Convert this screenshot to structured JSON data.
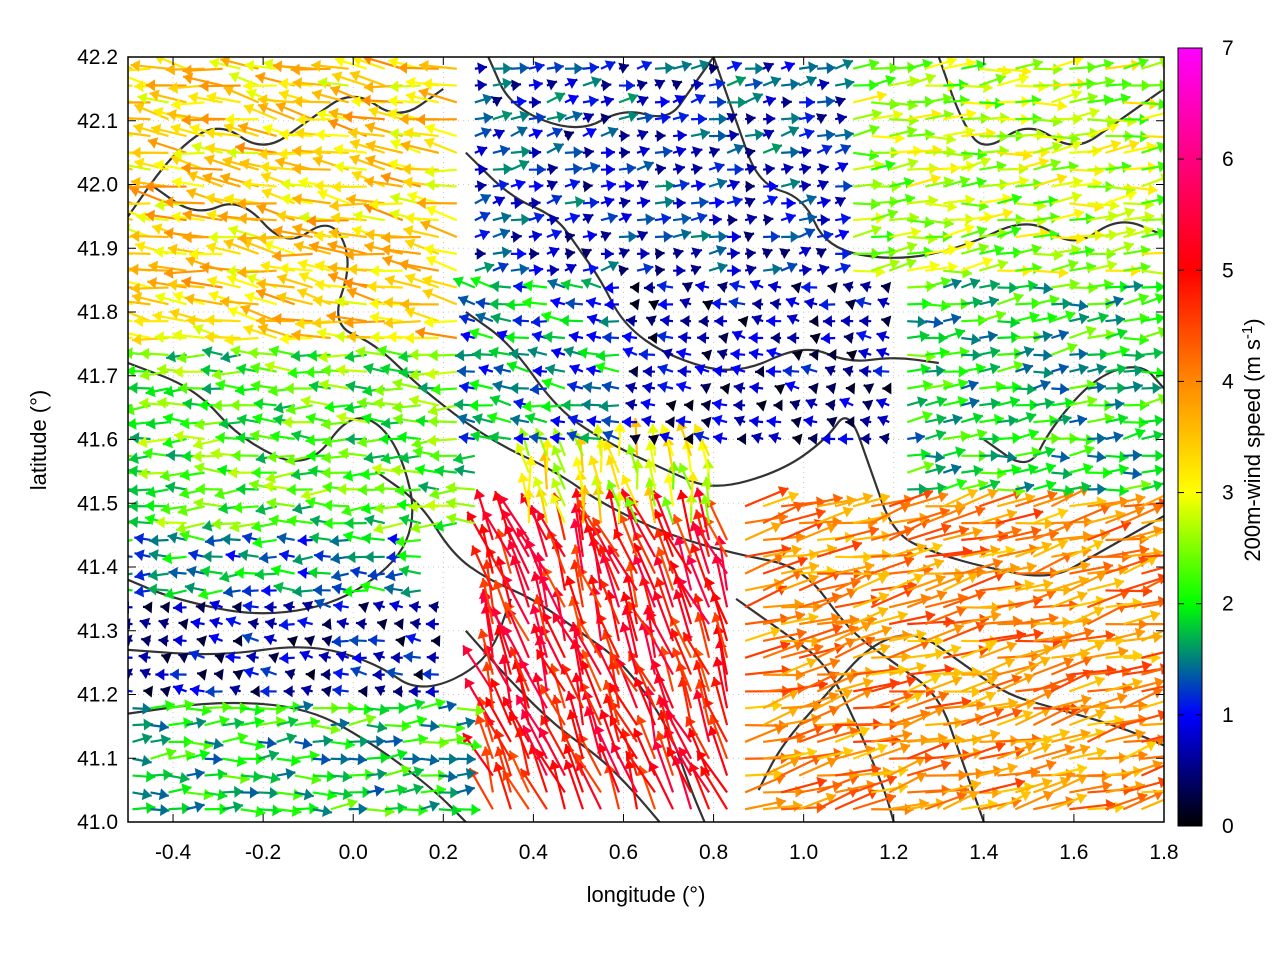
{
  "chart_data": {
    "type": "vector-field",
    "xlabel": "longitude (°)",
    "ylabel": "latitude (°)",
    "colorbar_label": "200m-wind speed (m s",
    "colorbar_label_sup": "-1",
    "colorbar_label_close": ")",
    "xlim": [
      -0.5,
      1.8
    ],
    "ylim": [
      41.0,
      42.2
    ],
    "xticks": [
      -0.4,
      -0.2,
      0.0,
      0.2,
      0.4,
      0.6,
      0.8,
      1.0,
      1.2,
      1.4,
      1.6,
      1.8
    ],
    "xtick_labels": [
      "-0.4",
      "-0.2",
      "0.0",
      "0.2",
      "0.4",
      "0.6",
      "0.8",
      "1.0",
      "1.2",
      "1.4",
      "1.6",
      "1.8"
    ],
    "yticks": [
      41.0,
      41.1,
      41.2,
      41.3,
      41.4,
      41.5,
      41.6,
      41.7,
      41.8,
      41.9,
      42.0,
      42.1,
      42.2
    ],
    "ytick_labels": [
      "41.0",
      "41.1",
      "41.2",
      "41.3",
      "41.4",
      "41.5",
      "41.6",
      "41.7",
      "41.8",
      "41.9",
      "42.0",
      "42.1",
      "42.2"
    ],
    "colorbar": {
      "range": [
        0,
        7
      ],
      "ticks": [
        0,
        1,
        2,
        3,
        4,
        5,
        6,
        7
      ],
      "tick_labels": [
        "0",
        "1",
        "2",
        "3",
        "4",
        "5",
        "6",
        "7"
      ],
      "colors": [
        "#000000",
        "#0000ff",
        "#00ff00",
        "#ffff00",
        "#ff8800",
        "#ff0000",
        "#ff00ff"
      ]
    },
    "grid": true,
    "vector_regions": [
      {
        "lon": [
          -0.5,
          0.3
        ],
        "lat": [
          41.75,
          42.2
        ],
        "u": -3.0,
        "v": 0.5,
        "speed": 3.4
      },
      {
        "lon": [
          -0.5,
          0.3
        ],
        "lat": [
          41.45,
          41.75
        ],
        "u": -2.2,
        "v": 0.0,
        "speed": 2.2
      },
      {
        "lon": [
          -0.5,
          0.15
        ],
        "lat": [
          41.35,
          41.45
        ],
        "u": -1.6,
        "v": 0.0,
        "speed": 1.6
      },
      {
        "lon": [
          -0.5,
          0.2
        ],
        "lat": [
          41.2,
          41.35
        ],
        "u": -0.6,
        "v": 0.1,
        "speed": 0.7
      },
      {
        "lon": [
          -0.5,
          0.25
        ],
        "lat": [
          41.0,
          41.2
        ],
        "u": 1.8,
        "v": 0.1,
        "speed": 1.9
      },
      {
        "lon": [
          0.3,
          0.85
        ],
        "lat": [
          41.0,
          41.45
        ],
        "u": -1.8,
        "v": 4.5,
        "speed": 5.0
      },
      {
        "lon": [
          0.35,
          0.8
        ],
        "lat": [
          41.45,
          41.6
        ],
        "u": -0.5,
        "v": 2.8,
        "speed": 3.0
      },
      {
        "lon": [
          0.6,
          1.2
        ],
        "lat": [
          41.6,
          41.85
        ],
        "u": -0.5,
        "v": 0.1,
        "speed": 0.6
      },
      {
        "lon": [
          0.25,
          0.6
        ],
        "lat": [
          41.6,
          41.85
        ],
        "u": -1.2,
        "v": 0.2,
        "speed": 1.5
      },
      {
        "lon": [
          0.25,
          1.1
        ],
        "lat": [
          41.85,
          42.2
        ],
        "u": 0.4,
        "v": 0.1,
        "speed": 1.0
      },
      {
        "lon": [
          1.1,
          1.8
        ],
        "lat": [
          41.85,
          42.2
        ],
        "u": 2.6,
        "v": 0.3,
        "speed": 2.7
      },
      {
        "lon": [
          1.2,
          1.8
        ],
        "lat": [
          41.5,
          41.85
        ],
        "u": 1.6,
        "v": 0.2,
        "speed": 1.9
      },
      {
        "lon": [
          0.85,
          1.8
        ],
        "lat": [
          41.0,
          41.5
        ],
        "u": 3.8,
        "v": 0.9,
        "speed": 4.0
      }
    ],
    "contour_lines": [
      {
        "points": [
          [
            -0.5,
            41.72
          ],
          [
            -0.35,
            41.68
          ],
          [
            -0.25,
            41.6
          ],
          [
            -0.1,
            41.55
          ],
          [
            0.0,
            41.65
          ],
          [
            0.1,
            41.6
          ],
          [
            0.15,
            41.45
          ],
          [
            0.0,
            41.35
          ],
          [
            -0.2,
            41.32
          ],
          [
            -0.4,
            41.35
          ],
          [
            -0.5,
            41.38
          ]
        ]
      },
      {
        "points": [
          [
            -0.5,
            41.27
          ],
          [
            -0.3,
            41.26
          ],
          [
            -0.1,
            41.28
          ],
          [
            0.05,
            41.25
          ],
          [
            0.15,
            41.2
          ],
          [
            0.3,
            41.25
          ],
          [
            0.35,
            41.35
          ]
        ]
      },
      {
        "points": [
          [
            -0.5,
            41.17
          ],
          [
            -0.3,
            41.19
          ],
          [
            -0.1,
            41.18
          ],
          [
            0.05,
            41.12
          ],
          [
            0.18,
            41.05
          ],
          [
            0.25,
            41.0
          ]
        ]
      },
      {
        "points": [
          [
            -0.45,
            42.0
          ],
          [
            -0.35,
            41.95
          ],
          [
            -0.25,
            41.98
          ],
          [
            -0.15,
            41.9
          ],
          [
            -0.05,
            41.95
          ],
          [
            0.0,
            41.88
          ],
          [
            -0.05,
            41.78
          ],
          [
            0.05,
            41.75
          ],
          [
            0.15,
            41.68
          ],
          [
            0.3,
            41.6
          ],
          [
            0.45,
            41.55
          ],
          [
            0.55,
            41.5
          ],
          [
            0.7,
            41.45
          ],
          [
            0.85,
            41.42
          ],
          [
            1.0,
            41.4
          ],
          [
            1.1,
            41.3
          ],
          [
            1.2,
            41.25
          ],
          [
            1.3,
            41.2
          ],
          [
            1.35,
            41.1
          ],
          [
            1.4,
            41.0
          ]
        ]
      },
      {
        "points": [
          [
            0.25,
            42.05
          ],
          [
            0.35,
            41.98
          ],
          [
            0.45,
            41.95
          ],
          [
            0.5,
            41.9
          ],
          [
            0.55,
            41.85
          ],
          [
            0.6,
            41.78
          ],
          [
            0.7,
            41.73
          ],
          [
            0.85,
            41.7
          ],
          [
            1.0,
            41.75
          ],
          [
            1.1,
            41.72
          ],
          [
            1.2,
            41.73
          ],
          [
            1.3,
            41.72
          ]
        ]
      },
      {
        "points": [
          [
            0.25,
            41.8
          ],
          [
            0.35,
            41.75
          ],
          [
            0.45,
            41.65
          ],
          [
            0.55,
            41.6
          ],
          [
            0.7,
            41.55
          ],
          [
            0.8,
            41.52
          ],
          [
            0.95,
            41.55
          ],
          [
            1.05,
            41.6
          ],
          [
            1.1,
            41.65
          ],
          [
            1.15,
            41.55
          ],
          [
            1.2,
            41.45
          ],
          [
            1.3,
            41.42
          ],
          [
            1.4,
            41.4
          ],
          [
            1.55,
            41.38
          ],
          [
            1.65,
            41.42
          ],
          [
            1.8,
            41.48
          ]
        ]
      },
      {
        "points": [
          [
            0.05,
            41.55
          ],
          [
            0.15,
            41.5
          ],
          [
            0.22,
            41.42
          ],
          [
            0.3,
            41.38
          ],
          [
            0.4,
            41.35
          ],
          [
            0.5,
            41.3
          ],
          [
            0.6,
            41.25
          ],
          [
            0.7,
            41.15
          ],
          [
            0.75,
            41.05
          ],
          [
            0.78,
            41.0
          ]
        ]
      },
      {
        "points": [
          [
            0.25,
            41.3
          ],
          [
            0.35,
            41.22
          ],
          [
            0.45,
            41.15
          ],
          [
            0.55,
            41.1
          ],
          [
            0.62,
            41.05
          ],
          [
            0.68,
            41.0
          ]
        ]
      },
      {
        "points": [
          [
            0.85,
            41.35
          ],
          [
            0.95,
            41.3
          ],
          [
            1.05,
            41.25
          ],
          [
            1.12,
            41.15
          ],
          [
            1.18,
            41.05
          ],
          [
            1.2,
            41.0
          ]
        ]
      },
      {
        "points": [
          [
            0.9,
            41.05
          ],
          [
            0.95,
            41.12
          ],
          [
            1.05,
            41.2
          ],
          [
            1.15,
            41.28
          ],
          [
            1.25,
            41.3
          ],
          [
            1.35,
            41.25
          ],
          [
            1.45,
            41.2
          ],
          [
            1.55,
            41.18
          ],
          [
            1.7,
            41.15
          ],
          [
            1.8,
            41.12
          ]
        ]
      },
      {
        "points": [
          [
            0.8,
            42.2
          ],
          [
            0.85,
            42.1
          ],
          [
            0.9,
            42.0
          ],
          [
            1.0,
            41.98
          ],
          [
            1.05,
            41.9
          ],
          [
            1.2,
            41.88
          ],
          [
            1.35,
            41.9
          ],
          [
            1.5,
            41.95
          ],
          [
            1.6,
            41.9
          ],
          [
            1.7,
            41.95
          ],
          [
            1.8,
            41.92
          ]
        ]
      },
      {
        "points": [
          [
            0.3,
            42.2
          ],
          [
            0.35,
            42.12
          ],
          [
            0.5,
            42.08
          ],
          [
            0.6,
            42.12
          ],
          [
            0.7,
            42.1
          ],
          [
            0.75,
            42.15
          ],
          [
            0.8,
            42.2
          ]
        ]
      },
      {
        "points": [
          [
            1.3,
            42.2
          ],
          [
            1.35,
            42.1
          ],
          [
            1.4,
            42.05
          ],
          [
            1.5,
            42.1
          ],
          [
            1.6,
            42.05
          ],
          [
            1.7,
            42.1
          ],
          [
            1.8,
            42.15
          ]
        ]
      },
      {
        "points": [
          [
            1.4,
            41.6
          ],
          [
            1.5,
            41.55
          ],
          [
            1.55,
            41.62
          ],
          [
            1.65,
            41.7
          ],
          [
            1.75,
            41.72
          ],
          [
            1.8,
            41.68
          ]
        ]
      },
      {
        "points": [
          [
            -0.5,
            41.95
          ],
          [
            -0.4,
            42.05
          ],
          [
            -0.3,
            42.1
          ],
          [
            -0.2,
            42.05
          ],
          [
            -0.1,
            42.1
          ],
          [
            0.0,
            42.15
          ],
          [
            0.1,
            42.1
          ],
          [
            0.2,
            42.15
          ]
        ]
      }
    ]
  }
}
